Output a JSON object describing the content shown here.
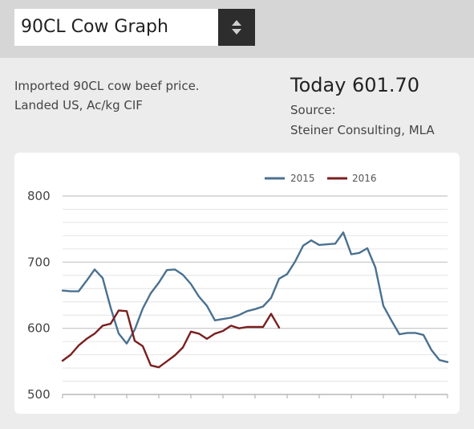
{
  "selector": {
    "value": "90CL Cow Graph"
  },
  "description": {
    "line1": "Imported 90CL cow beef price.",
    "line2": "Landed US, Ac/kg CIF"
  },
  "today": "Today 601.70",
  "source": {
    "label": "Source:",
    "value": "Steiner Consulting, MLA"
  },
  "colors": {
    "series_2015": "#4a7190",
    "series_2016": "#7a1f1f",
    "grid_major": "#c4c4c4",
    "grid_minor": "#e4e4e4",
    "axis": "#aaaaaa"
  },
  "chart_data": {
    "type": "line",
    "title": "",
    "xlabel": "",
    "ylabel": "",
    "ylim": [
      500,
      800
    ],
    "y_ticks": [
      "500",
      "600",
      "700",
      "800"
    ],
    "grid": true,
    "legend_position": "top-right",
    "series": [
      {
        "name": "2015",
        "color": "#4a7190",
        "values": [
          657,
          656,
          656,
          672,
          689,
          676,
          631,
          592,
          577,
          598,
          630,
          653,
          669,
          688,
          689,
          681,
          667,
          648,
          634,
          612,
          614,
          616,
          620,
          626,
          629,
          633,
          646,
          675,
          682,
          701,
          725,
          733,
          726,
          727,
          728,
          745,
          712,
          714,
          721,
          692,
          634,
          612,
          591,
          593,
          593,
          590,
          567,
          552,
          549
        ]
      },
      {
        "name": "2016",
        "color": "#7a1f1f",
        "values": [
          551,
          560,
          574,
          584,
          592,
          604,
          607,
          627,
          626,
          581,
          573,
          544,
          541,
          550,
          559,
          571,
          595,
          592,
          584,
          592,
          596,
          604,
          600,
          602,
          602,
          602,
          622,
          601
        ]
      }
    ]
  }
}
